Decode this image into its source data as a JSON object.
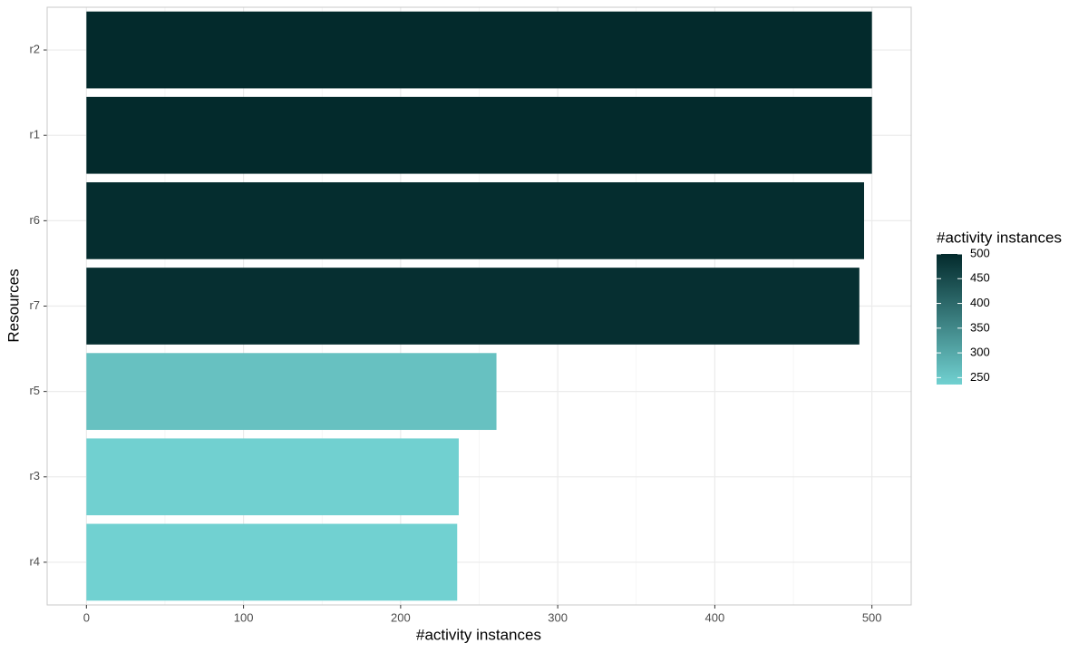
{
  "chart_data": {
    "type": "bar",
    "orientation": "horizontal",
    "xlabel": "#activity instances",
    "ylabel": "Resources",
    "categories": [
      "r2",
      "r1",
      "r6",
      "r7",
      "r5",
      "r3",
      "r4"
    ],
    "values": [
      500,
      500,
      495,
      492,
      261,
      237,
      236
    ],
    "xlim": [
      -25,
      525
    ],
    "xticks": [
      0,
      100,
      200,
      300,
      400,
      500
    ],
    "xminorticks": [
      50,
      150,
      250,
      350,
      450
    ],
    "grid": true,
    "colorscale": {
      "low": "#71d1d1",
      "high": "#032a2c"
    },
    "clim": [
      236,
      500
    ],
    "legend_title": "#activity instances",
    "legend_ticks": [
      250,
      300,
      350,
      400,
      450,
      500
    ],
    "legend": "right"
  }
}
